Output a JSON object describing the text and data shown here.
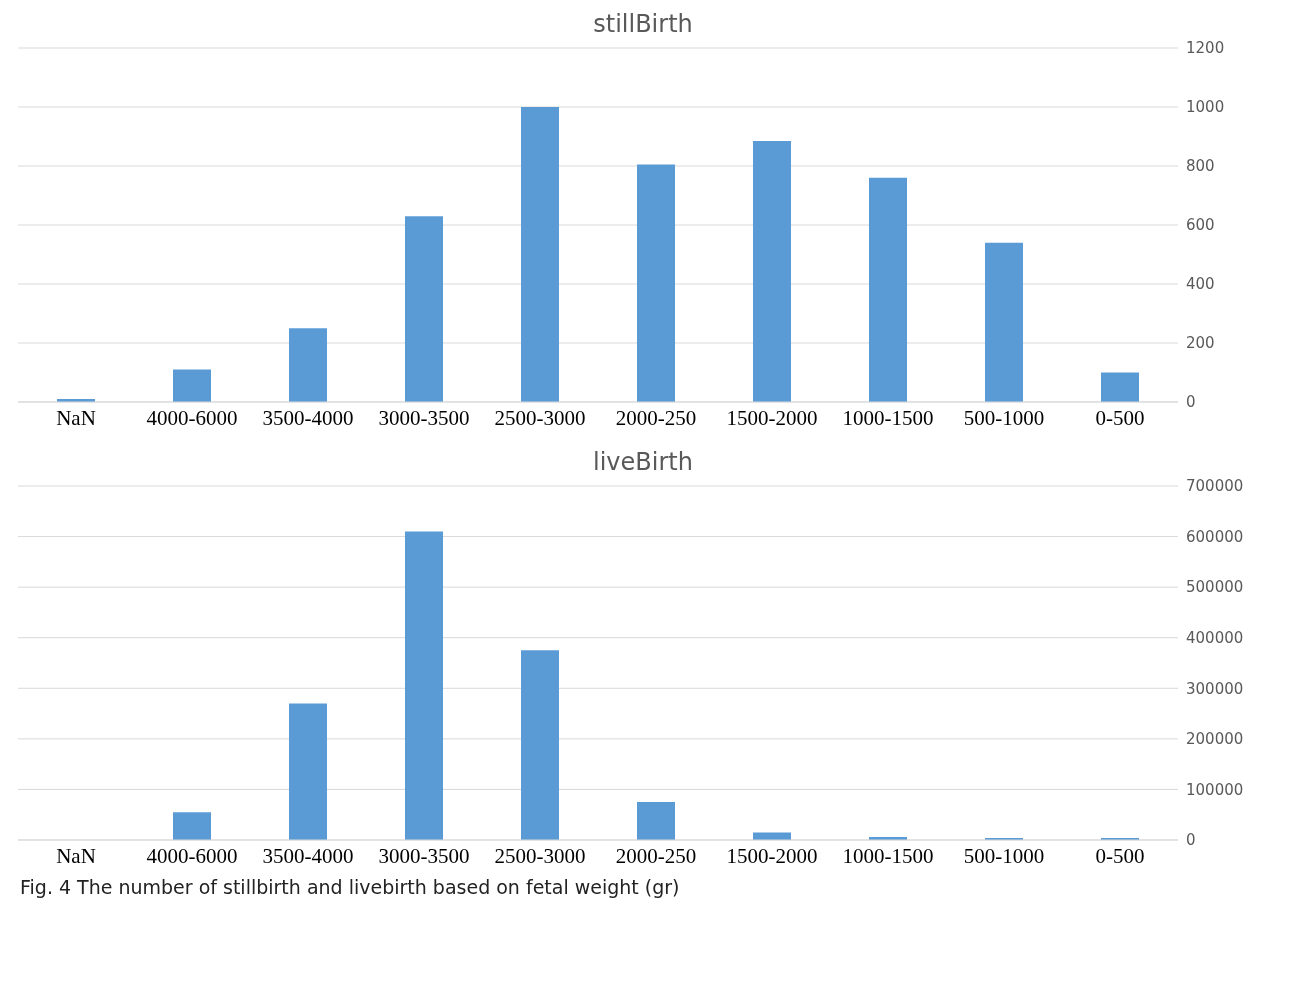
{
  "chart_data": [
    {
      "type": "bar",
      "title": "stillBirth",
      "categories": [
        "NaN",
        "4000-6000",
        "3500-4000",
        "3000-3500",
        "2500-3000",
        "2000-250",
        "1500-2000",
        "1000-1500",
        "500-1000",
        "0-500"
      ],
      "values": [
        10,
        110,
        250,
        630,
        1000,
        805,
        885,
        760,
        540,
        100
      ],
      "color": "#5b9bd5",
      "ylim": [
        0,
        1200
      ],
      "yticks": [
        0,
        200,
        400,
        600,
        800,
        1000,
        1200
      ],
      "grid": "y",
      "legend": false
    },
    {
      "type": "bar",
      "title": "liveBirth",
      "categories": [
        "NaN",
        "4000-6000",
        "3500-4000",
        "3000-3500",
        "2500-3000",
        "2000-250",
        "1500-2000",
        "1000-1500",
        "500-1000",
        "0-500"
      ],
      "values": [
        0,
        55000,
        270000,
        610000,
        375000,
        75000,
        15000,
        6000,
        4000,
        4000
      ],
      "color": "#5b9bd5",
      "ylim": [
        0,
        700000
      ],
      "yticks": [
        0,
        100000,
        200000,
        300000,
        400000,
        500000,
        600000,
        700000
      ],
      "grid": "y",
      "legend": false,
      "annotations": [
        "Fig. 4 The number of stillbirth and livebirth based on fetal weight (gr)"
      ]
    }
  ]
}
